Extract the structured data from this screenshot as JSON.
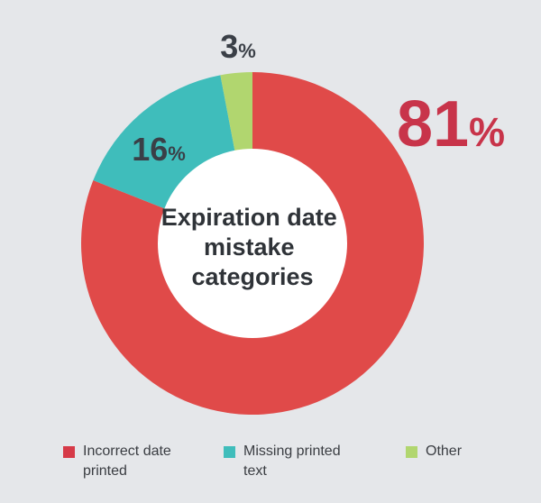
{
  "chart_data": {
    "type": "pie",
    "title": "Expiration date mistake categories",
    "title_lines": [
      "Expiration date",
      "mistake",
      "categories"
    ],
    "slices": [
      {
        "name": "Incorrect date printed",
        "legend_label": "Incorrect date\nprinted",
        "value": 81,
        "label": "81%",
        "color": "#e04a49"
      },
      {
        "name": "Missing printed text",
        "legend_label": "Missing printed\ntext",
        "value": 16,
        "label": "16%",
        "color": "#3fbdbb"
      },
      {
        "name": "Other",
        "legend_label": "Other",
        "value": 3,
        "label": "3%",
        "color": "#b1d66f"
      }
    ],
    "legend_placement": "bottom",
    "legend_swatch_colors": [
      "#d63a48",
      "#3fbdbb",
      "#b1d66f"
    ],
    "label_colors": {
      "big": "#c8344a",
      "small": "#3a3f47"
    }
  }
}
